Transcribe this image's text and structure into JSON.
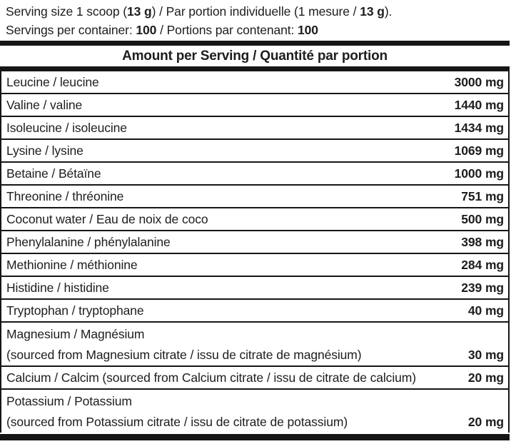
{
  "label": {
    "serving_line1": {
      "pre": "Serving size 1 scoop (",
      "bold1": "13 g",
      "mid": ") / Par portion individuelle (1 mesure / ",
      "bold2": "13 g",
      "post": ")."
    },
    "serving_line2": {
      "pre": "Servings per container: ",
      "bold1": "100",
      "mid": " / Portions par contenant: ",
      "bold2": "100"
    },
    "header": "Amount per Serving / Quantité par portion",
    "colors": {
      "ink": "#1d1d1b",
      "bar": "#161616",
      "background": "#ffffff"
    },
    "rows": [
      {
        "name": "Leucine / leucine",
        "value": "3000 mg"
      },
      {
        "name": "Valine / valine",
        "value": "1440 mg"
      },
      {
        "name": "Isoleucine / isoleucine",
        "value": "1434 mg"
      },
      {
        "name": "Lysine / lysine",
        "value": "1069 mg"
      },
      {
        "name": "Betaine / Bétaïne",
        "value": "1000 mg"
      },
      {
        "name": "Threonine / thréonine",
        "value": "751 mg"
      },
      {
        "name": "Coconut water / Eau de noix de coco",
        "value": "500 mg"
      },
      {
        "name": "Phenylalanine / phénylalanine",
        "value": "398 mg"
      },
      {
        "name": "Methionine / méthionine",
        "value": "284 mg"
      },
      {
        "name": "Histidine / histidine",
        "value": "239 mg"
      },
      {
        "name": "Tryptophan / tryptophane",
        "value": "40 mg"
      },
      {
        "name": "Magnesium / Magnésium",
        "name_line2": "(sourced from Magnesium citrate / issu de citrate de magnésium)",
        "value": "30 mg"
      },
      {
        "name": "Calcium / Calcim (sourced from Calcium citrate / issu de citrate de calcium)",
        "value": "20 mg"
      },
      {
        "name": "Potassium / Potassium",
        "name_line2": "(sourced from Potassium citrate / issu de citrate de potassium)",
        "value": "20 mg"
      }
    ]
  }
}
